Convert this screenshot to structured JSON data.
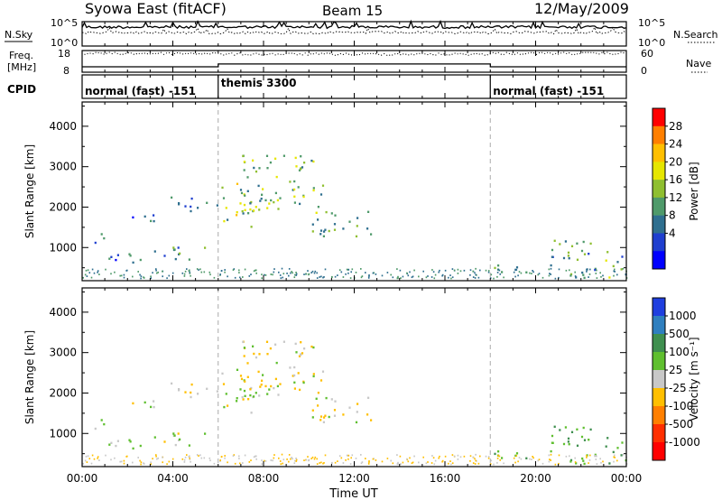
{
  "header": {
    "station": "Syowa East (fitACF)",
    "beam": "Beam 15",
    "date": "12/May/2009"
  },
  "noise_panel": {
    "left_label": "N.Sky",
    "right_label": "N.Search",
    "ticks": [
      "10^5",
      "10^0"
    ]
  },
  "freq_panel": {
    "left_label_1": "Freq.",
    "left_label_2": "[MHz]",
    "left_ticks": [
      "18",
      "8"
    ],
    "right_label": "Nave",
    "right_ticks": [
      "60",
      "0"
    ]
  },
  "cpid_panel": {
    "label": "CPID",
    "segments": [
      {
        "label": "normal (fast) -151",
        "start": 0,
        "end": 6
      },
      {
        "label": "themis 3300",
        "start": 6,
        "end": 18
      },
      {
        "label": "normal (fast) -151",
        "start": 18,
        "end": 24
      }
    ]
  },
  "time_axis": {
    "label": "Time UT",
    "range": [
      0,
      24
    ],
    "tick_hours": [
      0,
      4,
      8,
      12,
      16,
      20,
      24
    ],
    "tick_labels": [
      "00:00",
      "04:00",
      "08:00",
      "12:00",
      "16:00",
      "20:00",
      "00:00"
    ]
  },
  "range_axis": {
    "label": "Slant Range [km]",
    "range": [
      180,
      4600
    ],
    "tick_values": [
      1000,
      2000,
      3000,
      4000
    ],
    "tick_labels": [
      "1000",
      "2000",
      "3000",
      "4000"
    ]
  },
  "power_scale": {
    "label": "Power [dB]",
    "labels": [
      "28",
      "24",
      "20",
      "16",
      "12",
      "8",
      "4"
    ],
    "colors": [
      "#ff0000",
      "#ff7f00",
      "#ffbf00",
      "#e6e600",
      "#8fbf30",
      "#4f9a6a",
      "#2f6f8f",
      "#1f3fcf",
      "#0000ff"
    ]
  },
  "velocity_scale": {
    "label": "Velocity [m s⁻¹]",
    "labels": [
      "1000",
      "500",
      "100",
      "25",
      "-25",
      "-100",
      "-500",
      "-1000"
    ],
    "colors": [
      "#1f3fdf",
      "#2f7fbf",
      "#3f8f4f",
      "#5fbf2f",
      "#c8c8c8",
      "#ffbf00",
      "#ff7f00",
      "#ff2f00",
      "#ff0000"
    ]
  },
  "chart_data": {
    "type": "heatmap",
    "description_hours": "Backscatter echo regions (hours UT, slant range km)",
    "regions": [
      {
        "t0": 0.3,
        "t1": 1.2,
        "r0": 1100,
        "r1": 1400,
        "power": 9,
        "velocity": 30
      },
      {
        "t0": 0.6,
        "t1": 2.6,
        "r0": 650,
        "r1": 1000,
        "power": 8,
        "velocity": 40
      },
      {
        "t0": 1.8,
        "t1": 3.6,
        "r0": 1650,
        "r1": 1900,
        "power": 6,
        "velocity": 10
      },
      {
        "t0": 3.8,
        "t1": 6.0,
        "r0": 1900,
        "r1": 2300,
        "power": 7,
        "velocity": -15
      },
      {
        "t0": 3.0,
        "t1": 5.8,
        "r0": 700,
        "r1": 1100,
        "power": 9,
        "velocity": 20
      },
      {
        "t0": 6.0,
        "t1": 8.0,
        "r0": 1500,
        "r1": 2600,
        "power": 16,
        "velocity": 10
      },
      {
        "t0": 7.0,
        "t1": 10.6,
        "r0": 1800,
        "r1": 3300,
        "power": 15,
        "velocity": -10
      },
      {
        "t0": 10.0,
        "t1": 12.8,
        "r0": 1300,
        "r1": 2000,
        "power": 11,
        "velocity": -20
      },
      {
        "t0": 18.0,
        "t1": 20.0,
        "r0": 280,
        "r1": 600,
        "power": 14,
        "velocity": 110
      },
      {
        "t0": 20.6,
        "t1": 24.0,
        "r0": 250,
        "r1": 1200,
        "power": 12,
        "velocity": 80
      }
    ],
    "noise_series": [
      {
        "name": "N.Sky",
        "level_fraction": 0.78
      },
      {
        "name": "N.Search",
        "level_fraction": 0.55
      }
    ],
    "frequency_segments": [
      {
        "start": 0,
        "end": 6,
        "freq_mhz": 10.5,
        "nave": 52
      },
      {
        "start": 6,
        "end": 18,
        "freq_mhz": 11.8,
        "nave": 50
      },
      {
        "start": 18,
        "end": 24,
        "freq_mhz": 10.5,
        "nave": 52
      }
    ]
  }
}
